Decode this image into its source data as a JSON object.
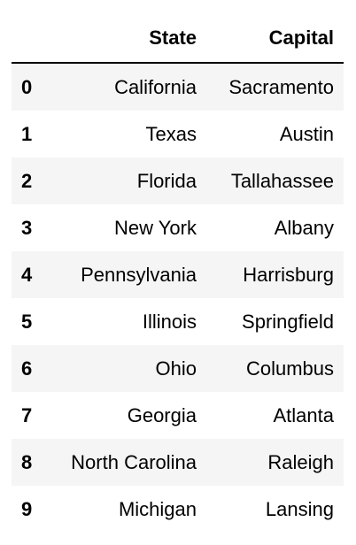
{
  "table": {
    "columns": [
      "State",
      "Capital"
    ],
    "rows": [
      {
        "index": "0",
        "state": "California",
        "capital": "Sacramento"
      },
      {
        "index": "1",
        "state": "Texas",
        "capital": "Austin"
      },
      {
        "index": "2",
        "state": "Florida",
        "capital": "Tallahassee"
      },
      {
        "index": "3",
        "state": "New York",
        "capital": "Albany"
      },
      {
        "index": "4",
        "state": "Pennsylvania",
        "capital": "Harrisburg"
      },
      {
        "index": "5",
        "state": "Illinois",
        "capital": "Springfield"
      },
      {
        "index": "6",
        "state": "Ohio",
        "capital": "Columbus"
      },
      {
        "index": "7",
        "state": "Georgia",
        "capital": "Atlanta"
      },
      {
        "index": "8",
        "state": "North Carolina",
        "capital": "Raleigh"
      },
      {
        "index": "9",
        "state": "Michigan",
        "capital": "Lansing"
      }
    ]
  },
  "colors": {
    "stripe": "#f5f5f5",
    "header_rule": "#000000",
    "text": "#000000"
  }
}
